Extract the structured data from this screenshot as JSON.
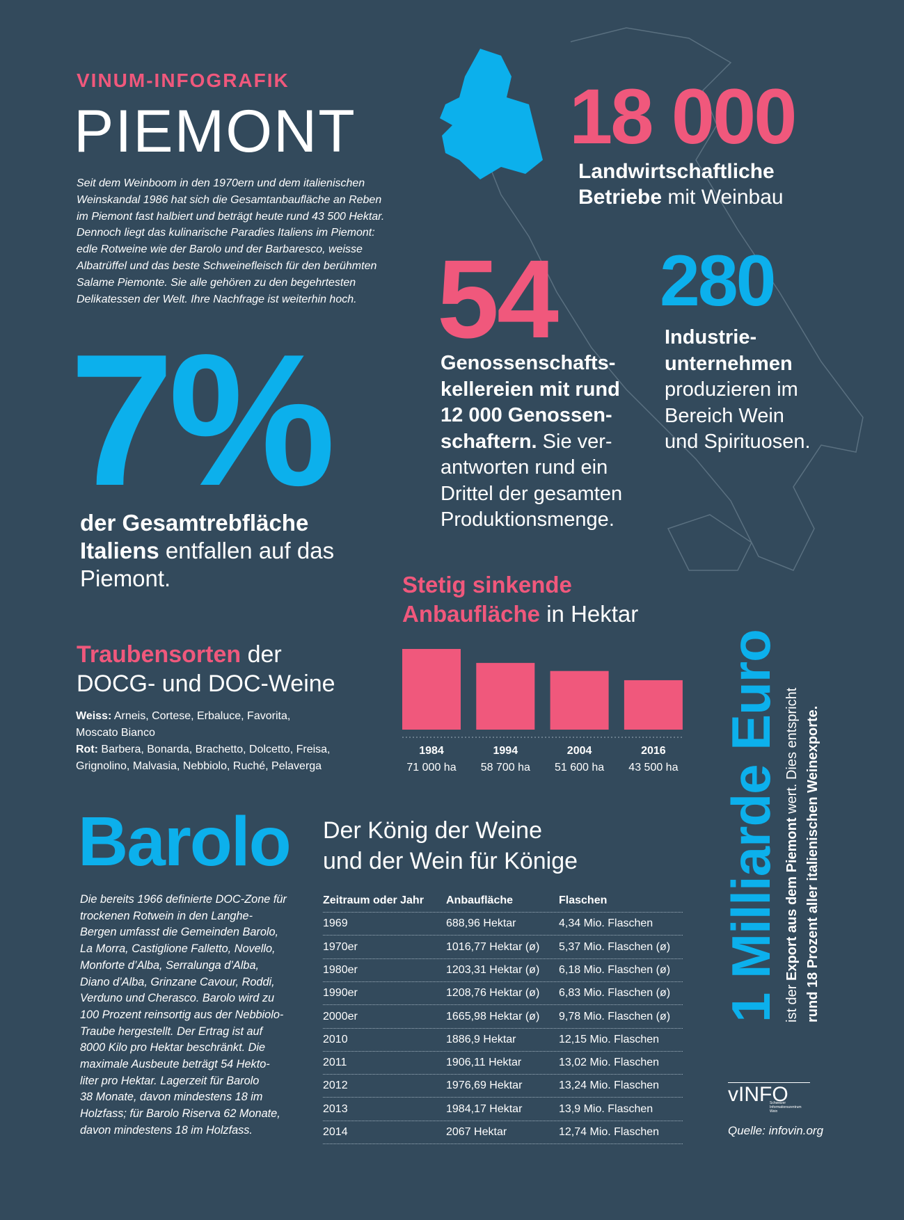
{
  "header": {
    "kicker": "VINUM-INFOGRAFIK",
    "title": "PIEMONT",
    "intro": "Seit dem Weinboom in den 1970ern und dem italienischen\nWeinskandal 1986 hat sich die Gesamtanbaufläche an Reben\nim Piemont fast halbiert und beträgt heute rund 43 500 Hektar.\nDennoch liegt das kulinarische Paradies Italiens im Piemont:\nedle Rotweine wie der Barolo und der Barbaresco, weisse\nAlbatrüffel und das beste Schweinefleisch für den berühmten\nSalame Piemonte. Sie alle gehören zu den begehrtesten\nDelikatessen der Welt. Ihre Nachfrage ist weiterhin hoch."
  },
  "stats": [
    {
      "number": "18 000",
      "bold": "Landwirtschaftliche\nBetriebe",
      "text": " mit Weinbau"
    },
    {
      "number": "54",
      "bold": "Genossenschafts-\nkellereien mit rund\n12 000 Genossen-\nschaftern.",
      "text": " Sie ver-\nantworten rund ein\nDrittel der gesamten\nProduktionsmenge."
    },
    {
      "number": "280",
      "bold": "Industrie-\nunternehmen",
      "text": "\nproduzieren im\nBereich Wein\nund Spirituosen."
    },
    {
      "number": "7%",
      "bold": "der Gesamtrebfläche\nItaliens",
      "text": " entfallen auf das\nPiemont."
    }
  ],
  "grapes": {
    "title_bold": "Traubensorten",
    "title": " der\nDOCG- und DOC-Weine",
    "white_label": "Weiss:",
    "white": " Arneis, Cortese, Erbaluce, Favorita,\nMoscato Bianco",
    "red_label": "Rot:",
    "red": " Barbera, Bonarda, Brachetto, Dolcetto, Freisa,\nGrignolino, Malvasia, Nebbiolo, Ruché, Pelaverga"
  },
  "chart_data": {
    "type": "bar",
    "title": "Stetig sinkende\nAnbaufläche",
    "subtitle": " in Hektar",
    "categories": [
      "1984",
      "1994",
      "2004",
      "2016"
    ],
    "values": [
      71000,
      58700,
      51600,
      43500
    ],
    "value_labels": [
      "71 000 ha",
      "58 700 ha",
      "51 600 ha",
      "43 500 ha"
    ],
    "color": "#f0587c"
  },
  "barolo": {
    "title": "Barolo",
    "subtitle": "Der König der Weine\nund der Wein für Könige",
    "text": "Die bereits 1966 definierte DOC-Zone für\ntrockenen Rotwein in den Langhe-\nBergen umfasst die Gemeinden Barolo,\nLa Morra, Castiglione Falletto, Novello,\nMonforte d’Alba, Serralunga d’Alba,\nDiano d’Alba, Grinzane Cavour, Roddi,\nVerduno und Cherasco. Barolo wird zu\n100 Prozent reinsortig aus der Nebbiolo-\nTraube hergestellt. Der Ertrag ist auf\n8000 Kilo pro Hektar beschränkt. Die\nmaximale Ausbeute beträgt 54 Hekto-\nliter pro Hektar. Lagerzeit für Barolo\n38 Monate, davon mindestens 18 im\nHolzfass; für Barolo Riserva 62 Monate,\ndavon mindestens 18 im Holzfass."
  },
  "table": {
    "header": [
      "Zeitraum oder Jahr",
      "Anbaufläche",
      "Flaschen"
    ],
    "rows": [
      [
        "1969",
        "688,96 Hektar",
        "4,34 Mio. Flaschen"
      ],
      [
        "1970er",
        "1016,77 Hektar (ø)",
        "5,37 Mio. Flaschen (ø)"
      ],
      [
        "1980er",
        "1203,31 Hektar (ø)",
        "6,18 Mio. Flaschen (ø)"
      ],
      [
        "1990er",
        "1208,76 Hektar (ø)",
        "6,83 Mio. Flaschen (ø)"
      ],
      [
        "2000er",
        "1665,98 Hektar (ø)",
        "9,78 Mio. Flaschen (ø)"
      ],
      [
        "2010",
        "1886,9 Hektar",
        "12,15 Mio. Flaschen"
      ],
      [
        "2011",
        "1906,11 Hektar",
        "13,02 Mio. Flaschen"
      ],
      [
        "2012",
        "1976,69 Hektar",
        "13,24 Mio. Flaschen"
      ],
      [
        "2013",
        "1984,17 Hektar",
        "13,9 Mio. Flaschen"
      ],
      [
        "2014",
        "2067 Hektar",
        "12,74 Mio. Flaschen"
      ]
    ]
  },
  "export": {
    "title": "1 Milliarde Euro",
    "line1_pre": "ist der ",
    "line1_bold": "Export aus dem Piemont",
    "line1_post": " wert. Dies entspricht",
    "line2": "rund 18 Prozent aller italienischen Weinexporte."
  },
  "logo": {
    "name": "vINFO",
    "tagline": "Schweizer\nInformationszentrum\nWein"
  },
  "source": "Quelle: infovin.org"
}
